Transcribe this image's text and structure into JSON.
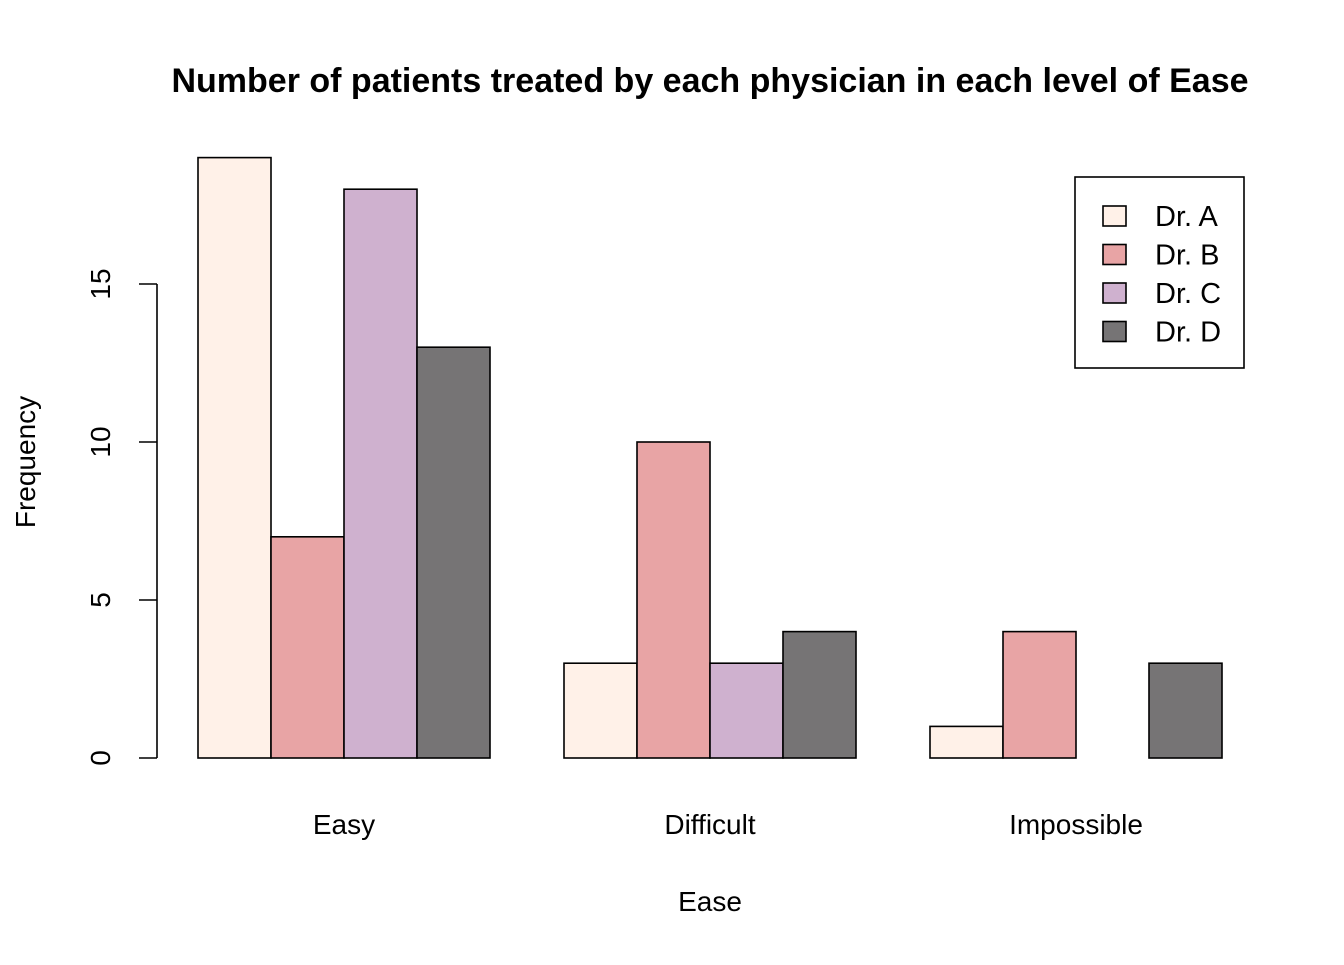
{
  "chart_data": {
    "type": "bar",
    "title": "Number of patients treated by each physician in each level of Ease",
    "xlabel": "Ease",
    "ylabel": "Frequency",
    "categories": [
      "Easy",
      "Difficult",
      "Impossible"
    ],
    "series": [
      {
        "name": "Dr. A",
        "color": "#FFF1E8",
        "values": [
          19,
          3,
          1
        ]
      },
      {
        "name": "Dr. B",
        "color": "#E8A4A5",
        "values": [
          7,
          10,
          4
        ]
      },
      {
        "name": "Dr. C",
        "color": "#CFB1CF",
        "values": [
          18,
          3,
          0
        ]
      },
      {
        "name": "Dr. D",
        "color": "#767475",
        "values": [
          13,
          4,
          3
        ]
      }
    ],
    "yticks": [
      0,
      5,
      10,
      15
    ],
    "ylim": [
      0,
      19
    ],
    "grid": false,
    "legend_position": "top-right"
  }
}
